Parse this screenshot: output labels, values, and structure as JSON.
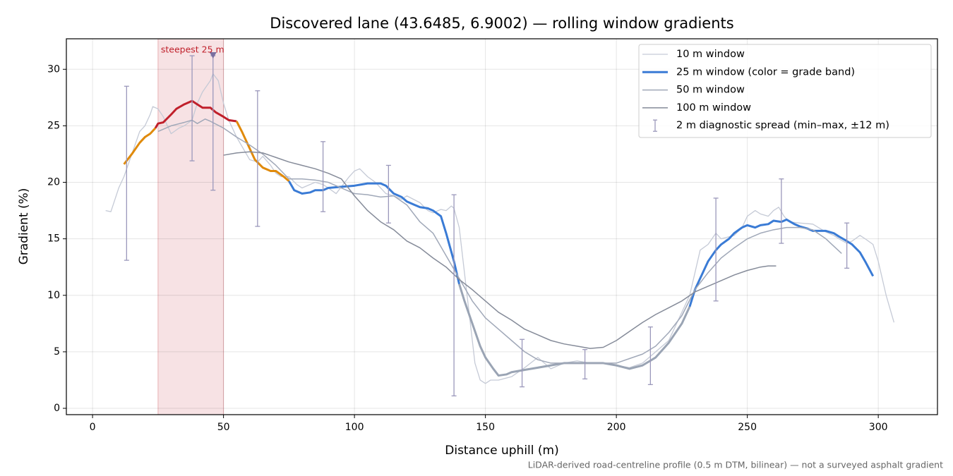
{
  "chart_data": {
    "type": "line",
    "title": "Discovered lane (43.6485, 6.9002) — rolling window gradients",
    "x_label": "Distance uphill (m)",
    "y_label": "Gradient (%)",
    "footnote": "LiDAR-derived road-centreline profile (0.5 m DTM, bilinear) — not a surveyed asphalt gradient",
    "xlim": [
      -10,
      322.6
    ],
    "ylim": [
      -0.56,
      32.7
    ],
    "xticks": [
      0,
      50,
      100,
      150,
      200,
      250,
      300
    ],
    "yticks": [
      0,
      5,
      10,
      15,
      20,
      25,
      30
    ],
    "grid": true,
    "legend": "upper right",
    "band_thresholds": [
      10,
      20,
      25
    ],
    "band_colors": [
      "#9aa4b4",
      "#3a7bd5",
      "#e08a0b",
      "#c0202b"
    ],
    "steepest": {
      "label": "steepest 25 m",
      "x0": 25,
      "x1": 50,
      "color": "#c0202b",
      "marker_x": 46,
      "marker_y": 31.2,
      "marker_color": "#7a6fa0"
    },
    "series": [
      {
        "name": "10 m window",
        "color": "#c5cad6",
        "width": 1.3,
        "x": [
          5,
          7,
          10,
          12,
          15,
          18,
          20,
          22,
          23,
          25,
          27,
          30,
          33,
          35,
          38,
          40,
          42,
          45,
          46,
          48,
          50,
          52,
          55,
          57,
          60,
          63,
          65,
          68,
          70,
          72,
          75,
          78,
          80,
          85,
          88,
          90,
          93,
          95,
          98,
          100,
          102,
          105,
          108,
          112,
          115,
          118,
          120,
          125,
          128,
          130,
          133,
          135,
          137,
          138,
          140,
          142,
          144,
          146,
          148,
          150,
          152,
          155,
          160,
          165,
          170,
          175,
          180,
          185,
          190,
          195,
          200,
          205,
          210,
          215,
          220,
          225,
          228,
          230,
          232,
          235,
          238,
          240,
          245,
          248,
          250,
          253,
          255,
          258,
          260,
          262,
          264,
          266,
          270,
          275,
          280,
          283,
          285,
          288,
          290,
          293,
          295,
          298,
          300,
          303,
          306
        ],
        "values": [
          17.5,
          17.4,
          19.5,
          20.5,
          22.5,
          24.5,
          25,
          26,
          26.7,
          26.5,
          25.8,
          24.3,
          24.8,
          25.0,
          25.5,
          27.0,
          28.0,
          29.0,
          29.6,
          29.0,
          27.0,
          25.5,
          24.0,
          23.2,
          22.0,
          21.8,
          22.3,
          21.5,
          20.8,
          20.5,
          20.5,
          19.8,
          19.5,
          20.0,
          19.8,
          19.5,
          19.0,
          19.6,
          20.5,
          21.0,
          21.2,
          20.5,
          20.0,
          19.0,
          18.8,
          18.5,
          18.8,
          18.2,
          17.5,
          17.3,
          17.6,
          17.5,
          17.9,
          17.7,
          16.0,
          12.0,
          8.0,
          4.0,
          2.5,
          2.2,
          2.5,
          2.5,
          2.8,
          3.6,
          4.5,
          3.5,
          4.0,
          4.2,
          4.0,
          4.0,
          3.8,
          3.6,
          4.0,
          5.0,
          6.0,
          8.5,
          10.0,
          12.0,
          14.0,
          14.5,
          15.5,
          15.0,
          15.3,
          16.0,
          17.0,
          17.5,
          17.2,
          17.0,
          17.5,
          17.8,
          17.0,
          16.5,
          16.4,
          16.3,
          15.6,
          15.3,
          15.0,
          14.6,
          14.8,
          15.3,
          15.0,
          14.5,
          13.0,
          10.0,
          7.6
        ]
      },
      {
        "name": "25 m window (color = grade band)",
        "color": "#3a7bd5",
        "width": 3,
        "banded": true,
        "x": [
          12,
          15,
          18,
          20,
          22,
          24,
          25,
          27,
          30,
          32,
          35,
          38,
          40,
          42,
          45,
          47,
          50,
          52,
          55,
          57,
          60,
          62,
          65,
          68,
          70,
          73,
          75,
          77,
          80,
          83,
          85,
          88,
          90,
          95,
          100,
          105,
          110,
          112,
          115,
          118,
          120,
          123,
          125,
          128,
          130,
          133,
          135,
          138,
          140,
          142,
          145,
          148,
          150,
          153,
          155,
          158,
          160,
          165,
          170,
          175,
          180,
          185,
          190,
          195,
          200,
          205,
          210,
          215,
          220,
          225,
          228,
          230,
          233,
          235,
          238,
          240,
          243,
          245,
          248,
          250,
          253,
          255,
          258,
          260,
          263,
          265,
          268,
          270,
          273,
          275,
          280,
          283,
          285,
          288,
          290,
          293,
          295,
          298
        ],
        "values": [
          21.6,
          22.5,
          23.5,
          24.0,
          24.3,
          24.8,
          25.2,
          25.3,
          26.0,
          26.5,
          26.9,
          27.2,
          26.9,
          26.6,
          26.6,
          26.2,
          25.8,
          25.5,
          25.4,
          24.5,
          23.0,
          22.0,
          21.3,
          21.0,
          21.0,
          20.5,
          20.1,
          19.3,
          19.0,
          19.1,
          19.3,
          19.3,
          19.5,
          19.6,
          19.7,
          19.9,
          19.9,
          19.7,
          19.0,
          18.7,
          18.3,
          18.0,
          17.8,
          17.7,
          17.5,
          17.0,
          15.5,
          13.0,
          11.0,
          9.5,
          7.5,
          5.5,
          4.5,
          3.5,
          2.9,
          3.0,
          3.2,
          3.4,
          3.6,
          3.8,
          4.0,
          4.0,
          4.0,
          4.0,
          3.8,
          3.5,
          3.8,
          4.5,
          5.8,
          7.5,
          9.0,
          10.5,
          12.0,
          13.0,
          14.0,
          14.5,
          15.0,
          15.5,
          16.0,
          16.2,
          16.0,
          16.2,
          16.3,
          16.6,
          16.5,
          16.7,
          16.3,
          16.1,
          15.9,
          15.7,
          15.7,
          15.5,
          15.2,
          14.8,
          14.5,
          13.8,
          13.0,
          11.7
        ]
      },
      {
        "name": "50 m window",
        "color": "#a0a8b8",
        "width": 1.5,
        "x": [
          25,
          30,
          35,
          38,
          40,
          43,
          45,
          50,
          55,
          60,
          65,
          70,
          75,
          80,
          85,
          90,
          95,
          100,
          105,
          110,
          115,
          120,
          125,
          130,
          135,
          140,
          145,
          150,
          155,
          160,
          165,
          170,
          175,
          180,
          185,
          190,
          195,
          200,
          205,
          210,
          215,
          220,
          225,
          230,
          235,
          240,
          245,
          250,
          255,
          260,
          265,
          270,
          275,
          280,
          286
        ],
        "values": [
          24.5,
          25.0,
          25.3,
          25.5,
          25.2,
          25.6,
          25.4,
          24.8,
          24.0,
          23.3,
          22.5,
          21.5,
          20.3,
          20.3,
          20.2,
          20.0,
          19.5,
          19.0,
          18.9,
          18.7,
          18.8,
          18.0,
          16.5,
          15.5,
          13.5,
          11.5,
          9.5,
          8.0,
          7.0,
          6.0,
          5.0,
          4.3,
          4.0,
          4.0,
          4.0,
          4.0,
          4.0,
          4.0,
          4.4,
          4.8,
          5.5,
          6.7,
          8.2,
          10.5,
          12.0,
          13.3,
          14.2,
          15.0,
          15.5,
          15.8,
          16.0,
          16.0,
          15.8,
          15.0,
          13.7
        ]
      },
      {
        "name": "100 m window",
        "color": "#858b99",
        "width": 1.5,
        "x": [
          50,
          55,
          60,
          65,
          70,
          75,
          80,
          85,
          90,
          95,
          100,
          105,
          110,
          115,
          120,
          125,
          130,
          135,
          140,
          145,
          150,
          155,
          160,
          165,
          170,
          175,
          180,
          185,
          190,
          195,
          200,
          205,
          210,
          215,
          220,
          225,
          230,
          235,
          240,
          245,
          250,
          255,
          258,
          261
        ],
        "values": [
          22.4,
          22.6,
          22.7,
          22.6,
          22.2,
          21.8,
          21.5,
          21.2,
          20.8,
          20.3,
          18.8,
          17.5,
          16.5,
          15.8,
          14.8,
          14.2,
          13.3,
          12.5,
          11.4,
          10.5,
          9.5,
          8.5,
          7.8,
          7.0,
          6.5,
          6.0,
          5.7,
          5.5,
          5.3,
          5.4,
          6.0,
          6.8,
          7.6,
          8.3,
          8.9,
          9.5,
          10.3,
          10.8,
          11.3,
          11.8,
          12.2,
          12.5,
          12.6,
          12.6
        ]
      }
    ],
    "spread": {
      "name": "2 m diagnostic spread (min–max, ±12 m)",
      "color": "#9b98bb",
      "x": [
        13,
        38,
        46,
        63,
        88,
        113,
        138,
        164,
        188,
        213,
        238,
        263,
        288
      ],
      "min": [
        13.1,
        21.9,
        19.3,
        16.1,
        17.4,
        16.4,
        1.1,
        1.9,
        2.6,
        2.1,
        9.5,
        14.6,
        12.4
      ],
      "max": [
        28.5,
        31.2,
        31.2,
        28.1,
        23.6,
        21.5,
        18.9,
        6.1,
        5.2,
        7.2,
        18.6,
        20.3,
        16.4
      ]
    }
  }
}
